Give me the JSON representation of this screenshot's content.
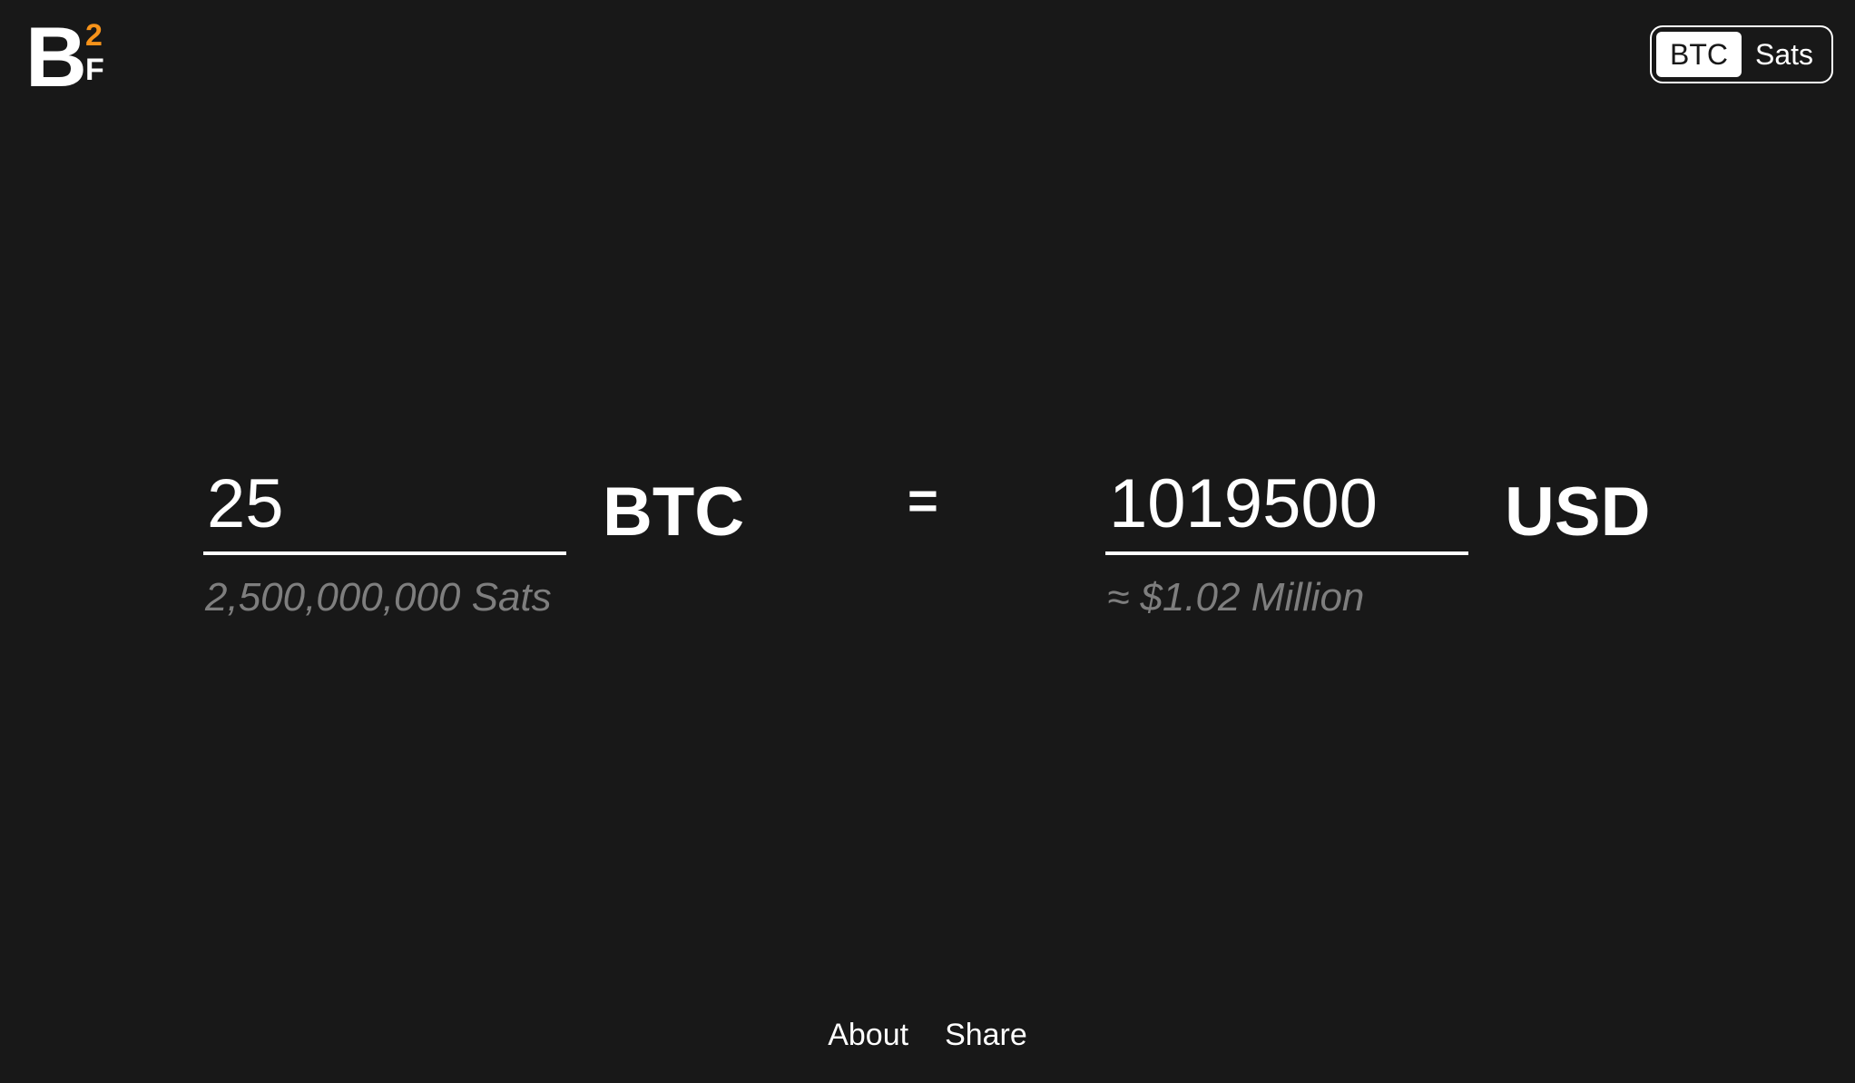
{
  "logo": {
    "letter_b": "B",
    "superscript": "2",
    "subscript": "F",
    "accent_color": "#f7931a"
  },
  "unit_toggle": {
    "options": [
      "BTC",
      "Sats"
    ],
    "selected": "BTC"
  },
  "converter": {
    "from": {
      "value": "25",
      "unit": "BTC",
      "subtext": "2,500,000,000 Sats"
    },
    "equals_sign": "=",
    "to": {
      "value": "1019500",
      "unit": "USD",
      "subtext": "≈ $1.02 Million"
    }
  },
  "footer": {
    "links": [
      "About",
      "Share"
    ]
  },
  "colors": {
    "background": "#181818",
    "text": "#ffffff",
    "muted": "#7e7e7e"
  }
}
